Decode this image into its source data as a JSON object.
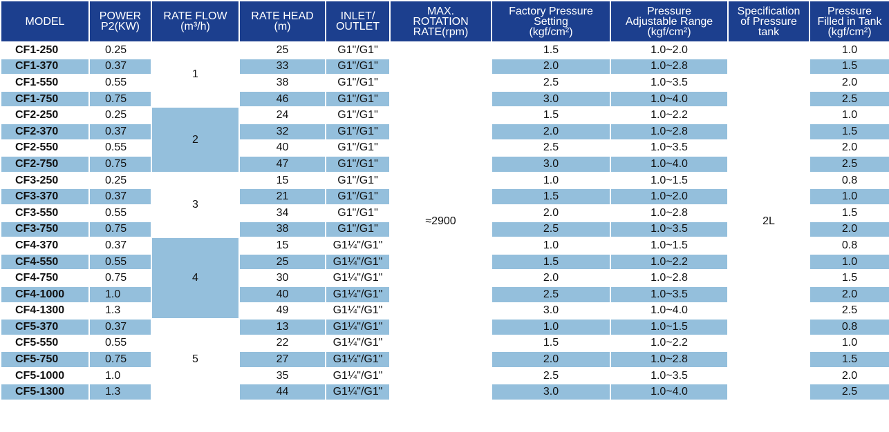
{
  "table": {
    "header": [
      [
        "MODEL"
      ],
      [
        "POWER",
        "P2(KW)"
      ],
      [
        "RATE FLOW",
        "(m³/h)"
      ],
      [
        "RATE HEAD",
        "(m)"
      ],
      [
        "INLET/",
        "OUTLET"
      ],
      [
        "MAX.",
        "ROTATION",
        "RATE(rpm)"
      ],
      [
        "Factory Pressure",
        "Setting",
        "(kgf/cm²)"
      ],
      [
        "Pressure",
        "Adjustable Range",
        "(kgf/cm²)"
      ],
      [
        "Specification",
        "of Pressure",
        "tank"
      ],
      [
        "Pressure",
        "Filled in Tank",
        "(kgf/cm²)"
      ]
    ],
    "max_rotation": "≈2900",
    "tank": "2L",
    "groups": [
      {
        "rate_flow": "1",
        "rows": [
          [
            "CF1-250",
            "0.25",
            "25",
            "G1\"/G1\"",
            "1.5",
            "1.0~2.0",
            "1.0"
          ],
          [
            "CF1-370",
            "0.37",
            "33",
            "G1\"/G1\"",
            "2.0",
            "1.0~2.8",
            "1.5"
          ],
          [
            "CF1-550",
            "0.55",
            "38",
            "G1\"/G1\"",
            "2.5",
            "1.0~3.5",
            "2.0"
          ],
          [
            "CF1-750",
            "0.75",
            "46",
            "G1\"/G1\"",
            "3.0",
            "1.0~4.0",
            "2.5"
          ]
        ]
      },
      {
        "rate_flow": "2",
        "rows": [
          [
            "CF2-250",
            "0.25",
            "24",
            "G1\"/G1\"",
            "1.5",
            "1.0~2.2",
            "1.0"
          ],
          [
            "CF2-370",
            "0.37",
            "32",
            "G1\"/G1\"",
            "2.0",
            "1.0~2.8",
            "1.5"
          ],
          [
            "CF2-550",
            "0.55",
            "40",
            "G1\"/G1\"",
            "2.5",
            "1.0~3.5",
            "2.0"
          ],
          [
            "CF2-750",
            "0.75",
            "47",
            "G1\"/G1\"",
            "3.0",
            "1.0~4.0",
            "2.5"
          ]
        ]
      },
      {
        "rate_flow": "3",
        "rows": [
          [
            "CF3-250",
            "0.25",
            "15",
            "G1\"/G1\"",
            "1.0",
            "1.0~1.5",
            "0.8"
          ],
          [
            "CF3-370",
            "0.37",
            "21",
            "G1\"/G1\"",
            "1.5",
            "1.0~2.0",
            "1.0"
          ],
          [
            "CF3-550",
            "0.55",
            "34",
            "G1\"/G1\"",
            "2.0",
            "1.0~2.8",
            "1.5"
          ],
          [
            "CF3-750",
            "0.75",
            "38",
            "G1\"/G1\"",
            "2.5",
            "1.0~3.5",
            "2.0"
          ]
        ]
      },
      {
        "rate_flow": "4",
        "rows": [
          [
            "CF4-370",
            "0.37",
            "15",
            "G1¼\"/G1\"",
            "1.0",
            "1.0~1.5",
            "0.8"
          ],
          [
            "CF4-550",
            "0.55",
            "25",
            "G1¼\"/G1\"",
            "1.5",
            "1.0~2.2",
            "1.0"
          ],
          [
            "CF4-750",
            "0.75",
            "30",
            "G1¼\"/G1\"",
            "2.0",
            "1.0~2.8",
            "1.5"
          ],
          [
            "CF4-1000",
            "1.0",
            "40",
            "G1¼\"/G1\"",
            "2.5",
            "1.0~3.5",
            "2.0"
          ],
          [
            "CF4-1300",
            "1.3",
            "49",
            "G1¼\"/G1\"",
            "3.0",
            "1.0~4.0",
            "2.5"
          ]
        ]
      },
      {
        "rate_flow": "5",
        "rows": [
          [
            "CF5-370",
            "0.37",
            "13",
            "G1¼\"/G1\"",
            "1.0",
            "1.0~1.5",
            "0.8"
          ],
          [
            "CF5-550",
            "0.55",
            "22",
            "G1¼\"/G1\"",
            "1.5",
            "1.0~2.2",
            "1.0"
          ],
          [
            "CF5-750",
            "0.75",
            "27",
            "G1¼\"/G1\"",
            "2.0",
            "1.0~2.8",
            "1.5"
          ],
          [
            "CF5-1000",
            "1.0",
            "35",
            "G1¼\"/G1\"",
            "2.5",
            "1.0~3.5",
            "2.0"
          ],
          [
            "CF5-1300",
            "1.3",
            "44",
            "G1¼\"/G1\"",
            "3.0",
            "1.0~4.0",
            "2.5"
          ]
        ]
      }
    ]
  }
}
